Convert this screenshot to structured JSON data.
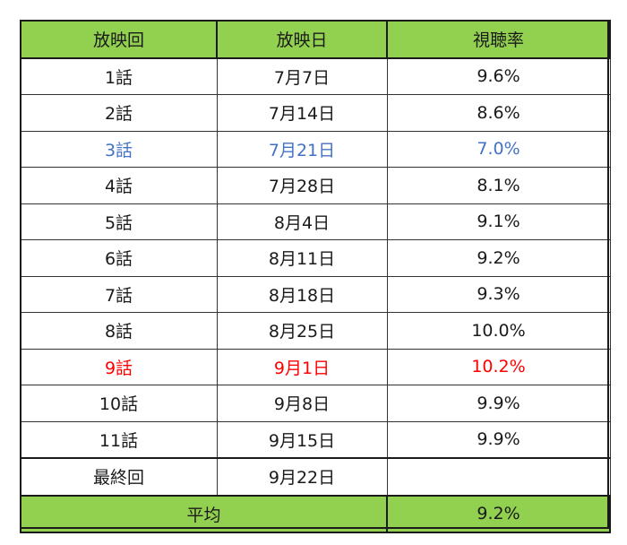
{
  "header": {
    "col1": "放映回",
    "col2": "放映日",
    "col3": "視聴率"
  },
  "rows": [
    {
      "episode": "1話",
      "date": "7月7日",
      "rating": "9.6%",
      "highlight": ""
    },
    {
      "episode": "2話",
      "date": "7月14日",
      "rating": "8.6%",
      "highlight": ""
    },
    {
      "episode": "3話",
      "date": "7月21日",
      "rating": "7.0%",
      "highlight": "blue"
    },
    {
      "episode": "4話",
      "date": "7月28日",
      "rating": "8.1%",
      "highlight": ""
    },
    {
      "episode": "5話",
      "date": "8月4日",
      "rating": "9.1%",
      "highlight": ""
    },
    {
      "episode": "6話",
      "date": "8月11日",
      "rating": "9.2%",
      "highlight": ""
    },
    {
      "episode": "7話",
      "date": "8月18日",
      "rating": "9.3%",
      "highlight": ""
    },
    {
      "episode": "8話",
      "date": "8月25日",
      "rating": "10.0%",
      "highlight": ""
    },
    {
      "episode": "9話",
      "date": "9月1日",
      "rating": "10.2%",
      "highlight": "red"
    },
    {
      "episode": "10話",
      "date": "9月8日",
      "rating": "9.9%",
      "highlight": ""
    },
    {
      "episode": "11話",
      "date": "9月15日",
      "rating": "9.9%",
      "highlight": ""
    },
    {
      "episode": "最終回",
      "date": "9月22日",
      "rating": "",
      "highlight": ""
    }
  ],
  "footer": {
    "label": "平均",
    "value": "9.2%"
  },
  "colors": {
    "header_bg": "#92d050",
    "low_highlight": "#4472c4",
    "high_highlight": "#ff0000"
  }
}
